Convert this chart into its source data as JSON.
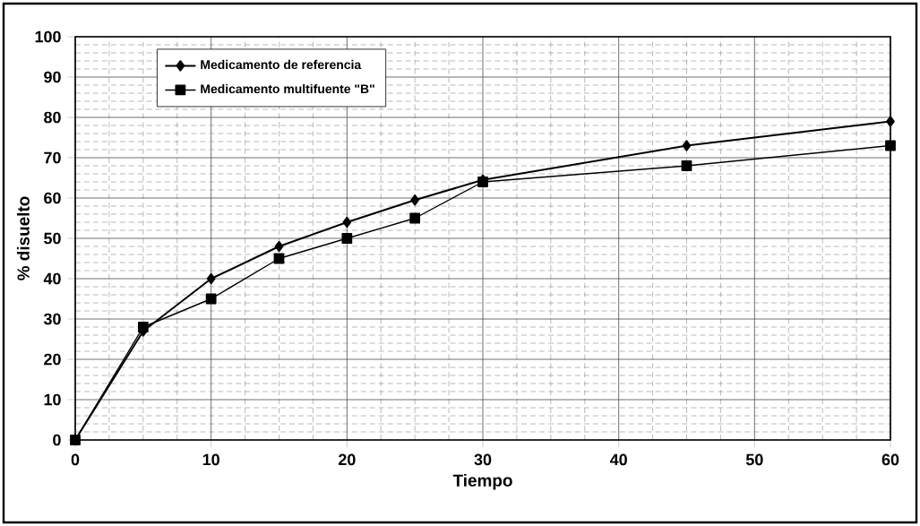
{
  "chart_data": {
    "type": "line",
    "xlabel": "Tiempo",
    "ylabel": "% disuelto",
    "x": [
      0,
      5,
      10,
      15,
      20,
      25,
      30,
      45,
      60
    ],
    "series": [
      {
        "name": "Medicamento de referencia",
        "color": "#000000",
        "marker": "diamond",
        "values": [
          0,
          27,
          40,
          48,
          54,
          59.5,
          64.5,
          73,
          79
        ]
      },
      {
        "name": "Medicamento multifuente \"B\"",
        "color": "#000000",
        "marker": "square",
        "values": [
          0,
          28,
          35,
          45,
          50,
          55,
          64,
          68,
          73
        ]
      }
    ],
    "xlim": [
      0,
      60
    ],
    "ylim": [
      0,
      100
    ],
    "xticks": [
      0,
      10,
      20,
      30,
      40,
      50,
      60
    ],
    "yticks": [
      0,
      10,
      20,
      30,
      40,
      50,
      60,
      70,
      80,
      90,
      100
    ],
    "grid": true,
    "legend": "top left"
  }
}
